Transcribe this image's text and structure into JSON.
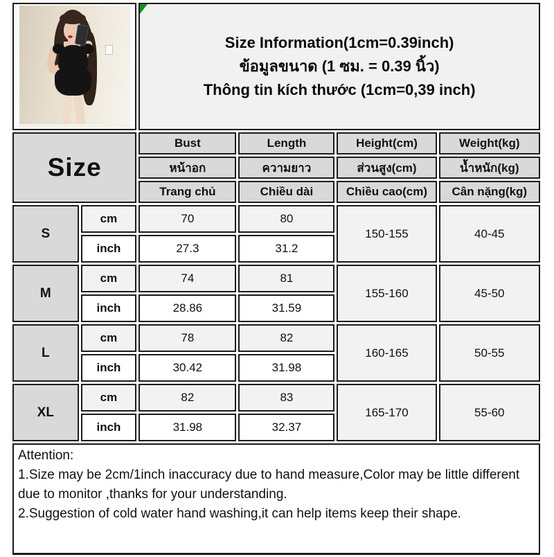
{
  "title": {
    "line1": "Size Information(1cm=0.39inch)",
    "line2_th": "ข้อมูลขนาด (1 ซม. = 0.39 นิ้ว)",
    "line3_vi": "Thông tin kích thước (1cm=0,39 inch)"
  },
  "photo": {
    "description": "model wearing black bodycon mini dress, mirror selfie"
  },
  "table": {
    "corner_label": "Size",
    "columns": [
      {
        "en": "Bust",
        "th": "หน้าอก",
        "vi": "Trang chủ"
      },
      {
        "en": "Length",
        "th": "ความยาว",
        "vi": "Chiều dài"
      },
      {
        "en": "Height(cm)",
        "th": "ส่วนสูง(cm)",
        "vi": "Chiều cao(cm)"
      },
      {
        "en": "Weight(kg)",
        "th": "น้ำหนัก(kg)",
        "vi": "Cân nặng(kg)"
      }
    ],
    "unit_cm_label": "cm",
    "unit_inch_label": "inch",
    "rows": [
      {
        "size": "S",
        "bust_cm": "70",
        "length_cm": "80",
        "bust_inch": "27.3",
        "length_inch": "31.2",
        "height": "150-155",
        "weight": "40-45"
      },
      {
        "size": "M",
        "bust_cm": "74",
        "length_cm": "81",
        "bust_inch": "28.86",
        "length_inch": "31.59",
        "height": "155-160",
        "weight": "45-50"
      },
      {
        "size": "L",
        "bust_cm": "78",
        "length_cm": "82",
        "bust_inch": "30.42",
        "length_inch": "31.98",
        "height": "160-165",
        "weight": "50-55"
      },
      {
        "size": "XL",
        "bust_cm": "82",
        "length_cm": "83",
        "bust_inch": "31.98",
        "length_inch": "32.37",
        "height": "165-170",
        "weight": "55-60"
      }
    ]
  },
  "attention": {
    "heading": "Attention:",
    "note1": "1.Size may be 2cm/1inch inaccuracy due to hand measure,Color may be little different due to monitor ,thanks for your understanding.",
    "note2": "2.Suggestion of cold water hand washing,it can help items keep their shape."
  },
  "colors": {
    "header_bg": "#d9d9d9",
    "shade_bg": "#f2f2f2",
    "border": "#1b1b1b",
    "marker_green": "#0f941d"
  }
}
